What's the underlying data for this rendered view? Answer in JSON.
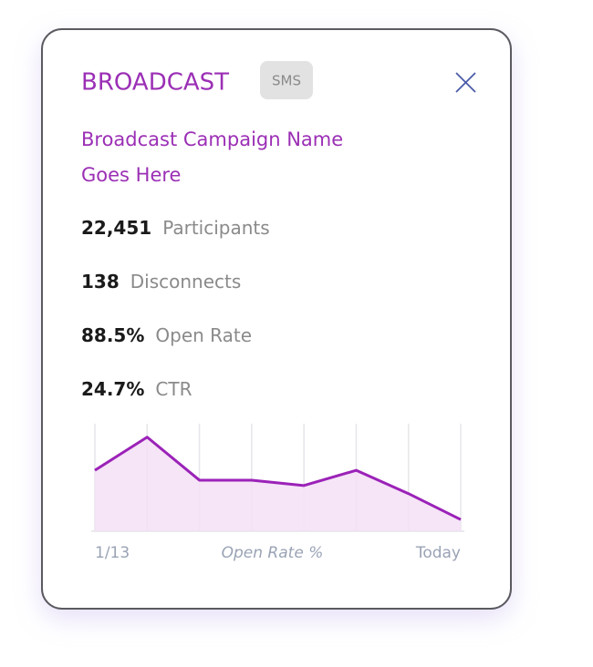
{
  "header": {
    "title": "BROADCAST",
    "badge": "SMS"
  },
  "campaign_name": [
    "Broadcast Campaign Name",
    "Goes Here"
  ],
  "stats": [
    {
      "value": "22,451",
      "label": "Participants"
    },
    {
      "value": "138",
      "label": "Disconnects"
    },
    {
      "value": "88.5%",
      "label": "Open Rate"
    },
    {
      "value": "24.7%",
      "label": "CTR"
    }
  ],
  "chart_data": {
    "type": "line",
    "xlabel": "Open Rate %",
    "categories": [
      "1/13",
      null,
      null,
      null,
      null,
      null,
      null,
      "Today"
    ],
    "values": [
      68,
      105,
      57,
      57,
      51,
      68,
      42,
      13
    ],
    "ylim": [
      0,
      120
    ],
    "color": "#9b22b8",
    "fill": "#f4dff6",
    "grid": true
  }
}
